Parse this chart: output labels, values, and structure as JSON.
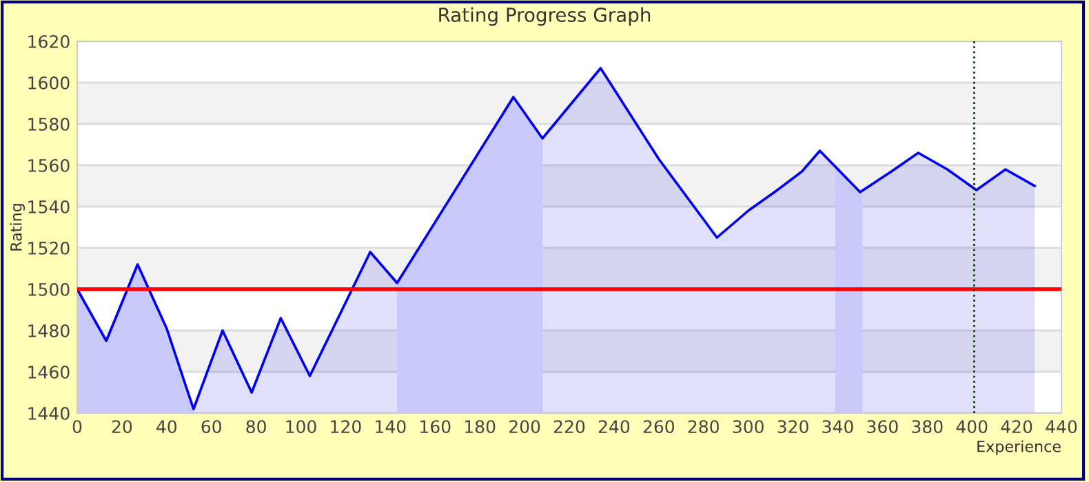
{
  "chart_data": {
    "type": "area",
    "title": "Rating Progress Graph",
    "xlabel": "Experience",
    "ylabel": "Rating",
    "series": [
      {
        "color": "#0000ee",
        "x": [
          0,
          13,
          27,
          40,
          52,
          65,
          78,
          91,
          104,
          131,
          143,
          195,
          208,
          234,
          260,
          286,
          300,
          313,
          324,
          332,
          350,
          364,
          376,
          389,
          402,
          415,
          428
        ],
        "values": [
          1500,
          1475,
          1512,
          1481,
          1442,
          1480,
          1450,
          1486,
          1458,
          1518,
          1503,
          1593,
          1573,
          1607,
          1563,
          1525,
          1538,
          1548,
          1557,
          1567,
          1547,
          1557,
          1566,
          1558,
          1548,
          1558,
          1550
        ]
      }
    ],
    "xlim": [
      0,
      440
    ],
    "xticks": [
      0,
      20,
      40,
      60,
      80,
      100,
      120,
      140,
      160,
      180,
      200,
      220,
      240,
      260,
      280,
      300,
      320,
      340,
      360,
      380,
      400,
      420,
      440
    ],
    "ylim": [
      1440,
      1620
    ],
    "yticks": [
      1440,
      1460,
      1480,
      1500,
      1520,
      1540,
      1560,
      1580,
      1600,
      1620
    ],
    "grid": "y",
    "ref_lines": [
      {
        "axis": "y",
        "value": 1500,
        "color": "#ff0000",
        "line_style": "solid"
      },
      {
        "axis": "x",
        "value": 401,
        "color": "#004400",
        "line_style": "dotted"
      }
    ],
    "bands": [
      {
        "axis": "x",
        "from": 0,
        "to": 52,
        "color": "#e4e4fb"
      },
      {
        "axis": "x",
        "from": 143,
        "to": 208,
        "color": "#e4e4fb"
      },
      {
        "axis": "x",
        "from": 339,
        "to": 351,
        "color": "#e4e4fb"
      }
    ]
  }
}
